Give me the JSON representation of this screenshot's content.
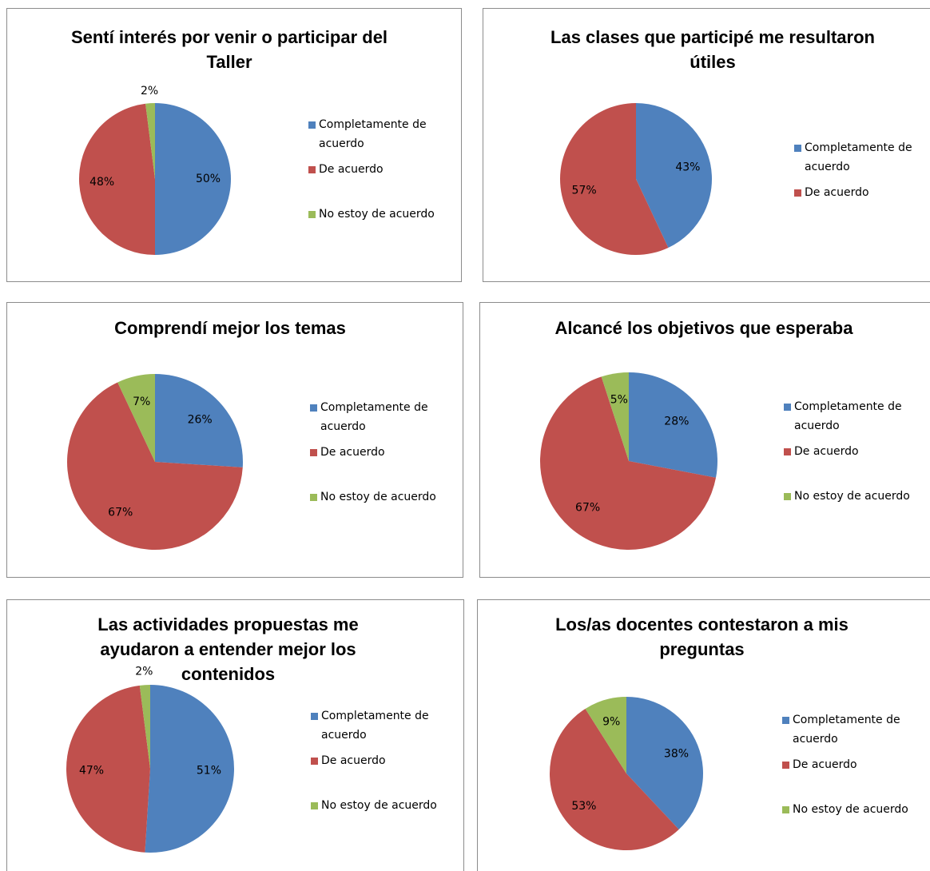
{
  "chart_data": [
    {
      "type": "pie",
      "title": "Sentí interés por venir o participar del Taller",
      "categories": [
        "Completamente de acuerdo",
        "De acuerdo",
        "No estoy de acuerdo"
      ],
      "values": [
        50,
        48,
        2
      ],
      "value_labels": [
        "50%",
        "48%",
        "2%"
      ],
      "colors": [
        "#4f81bd",
        "#c0504d",
        "#9bbb59"
      ],
      "legend": "right"
    },
    {
      "type": "pie",
      "title": "Las clases que participé me resultaron útiles",
      "categories": [
        "Completamente de acuerdo",
        "De acuerdo"
      ],
      "values": [
        43,
        57
      ],
      "value_labels": [
        "43%",
        "57%"
      ],
      "colors": [
        "#4f81bd",
        "#c0504d"
      ],
      "legend": "right"
    },
    {
      "type": "pie",
      "title": "Comprendí mejor los temas",
      "categories": [
        "Completamente de acuerdo",
        "De acuerdo",
        "No estoy de acuerdo"
      ],
      "values": [
        26,
        67,
        7
      ],
      "value_labels": [
        "26%",
        "67%",
        "7%"
      ],
      "colors": [
        "#4f81bd",
        "#c0504d",
        "#9bbb59"
      ],
      "legend": "right"
    },
    {
      "type": "pie",
      "title": "Alcancé los objetivos que esperaba",
      "categories": [
        "Completamente de acuerdo",
        "De acuerdo",
        "No estoy de acuerdo"
      ],
      "values": [
        28,
        67,
        5
      ],
      "value_labels": [
        "28%",
        "67%",
        "5%"
      ],
      "colors": [
        "#4f81bd",
        "#c0504d",
        "#9bbb59"
      ],
      "legend": "right"
    },
    {
      "type": "pie",
      "title": "Las actividades propuestas me ayudaron a entender mejor los contenidos",
      "categories": [
        "Completamente de acuerdo",
        "De acuerdo",
        "No estoy de acuerdo"
      ],
      "values": [
        51,
        47,
        2
      ],
      "value_labels": [
        "51%",
        "47%",
        "2%"
      ],
      "colors": [
        "#4f81bd",
        "#c0504d",
        "#9bbb59"
      ],
      "legend": "right"
    },
    {
      "type": "pie",
      "title": "Los/as docentes contestaron a mis preguntas",
      "categories": [
        "Completamente de acuerdo",
        "De acuerdo",
        "No estoy de acuerdo"
      ],
      "values": [
        38,
        53,
        9
      ],
      "value_labels": [
        "38%",
        "53%",
        "9%"
      ],
      "colors": [
        "#4f81bd",
        "#c0504d",
        "#9bbb59"
      ],
      "legend": "right"
    }
  ]
}
